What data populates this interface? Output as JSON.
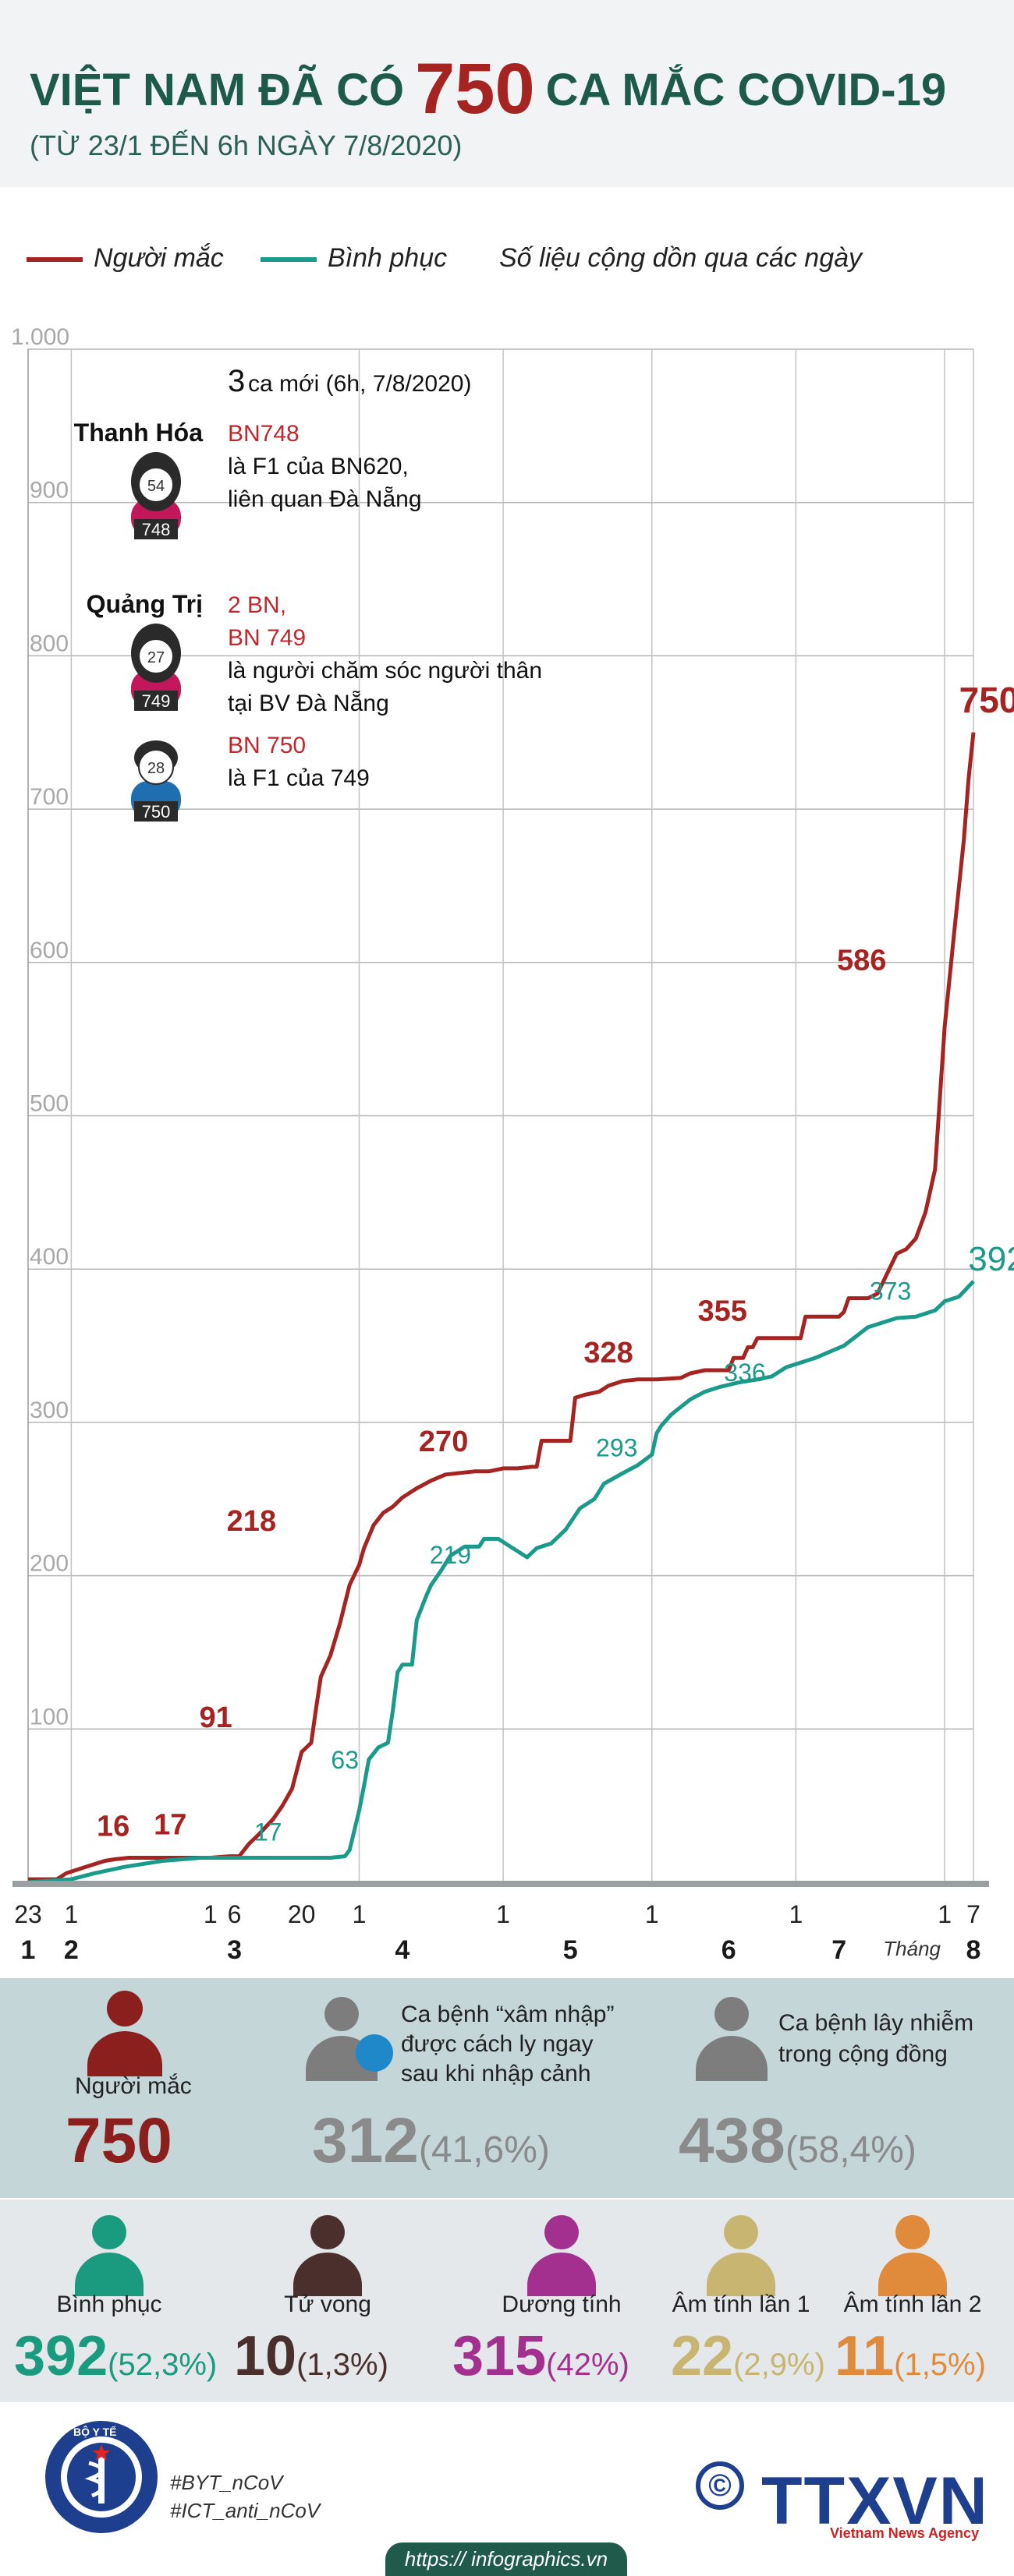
{
  "header": {
    "title_pre": "VIỆT NAM ĐÃ CÓ",
    "title_num": "750",
    "title_post": "CA MẮC COVID-19",
    "subtitle": "(TỪ 23/1 ĐẾN 6h NGÀY 7/8/2020)"
  },
  "legend": {
    "infected": "Người mắc",
    "recovered": "Bình phục",
    "note": "Số liệu cộng dồn qua các ngày"
  },
  "colors": {
    "infected": "#a52422",
    "recovered": "#1a9a8a",
    "title": "#1d5a4a"
  },
  "chart_data": {
    "type": "line",
    "title": "VIỆT NAM ĐÃ CÓ 750 CA MẮC COVID-19",
    "ylim": [
      0,
      1000
    ],
    "y_ticks": [
      "100",
      "200",
      "300",
      "400",
      "500",
      "600",
      "700",
      "800",
      "900",
      "1.000"
    ],
    "x_range_days": [
      0,
      197
    ],
    "x_day_labels": [
      {
        "day": 0,
        "label": "23"
      },
      {
        "day": 9,
        "label": "1"
      },
      {
        "day": 38,
        "label": "1"
      },
      {
        "day": 43,
        "label": "6"
      },
      {
        "day": 57,
        "label": "20"
      },
      {
        "day": 69,
        "label": "1"
      },
      {
        "day": 99,
        "label": "1"
      },
      {
        "day": 130,
        "label": "1"
      },
      {
        "day": 160,
        "label": "1"
      },
      {
        "day": 191,
        "label": "1"
      },
      {
        "day": 197,
        "label": "7"
      }
    ],
    "x_month_labels": [
      {
        "day": 0,
        "label": "1"
      },
      {
        "day": 9,
        "label": "2"
      },
      {
        "day": 43,
        "label": "3"
      },
      {
        "day": 78,
        "label": "4"
      },
      {
        "day": 113,
        "label": "5"
      },
      {
        "day": 146,
        "label": "6"
      },
      {
        "day": 169,
        "label": "7"
      },
      {
        "day": 197,
        "label": "8"
      }
    ],
    "month_word": "Tháng",
    "series": [
      {
        "name": "Người mắc",
        "points": [
          [
            0,
            2
          ],
          [
            6,
            2
          ],
          [
            8,
            6
          ],
          [
            10,
            8
          ],
          [
            12,
            10
          ],
          [
            14,
            12
          ],
          [
            16,
            14
          ],
          [
            18,
            15
          ],
          [
            21,
            16
          ],
          [
            38,
            16
          ],
          [
            42,
            17
          ],
          [
            44,
            17
          ],
          [
            46,
            25
          ],
          [
            48,
            31
          ],
          [
            51,
            41
          ],
          [
            53,
            50
          ],
          [
            55,
            61
          ],
          [
            57,
            85
          ],
          [
            59,
            91
          ],
          [
            60,
            113
          ],
          [
            61,
            134
          ],
          [
            63,
            148
          ],
          [
            65,
            169
          ],
          [
            67,
            194
          ],
          [
            69,
            207
          ],
          [
            70,
            218
          ],
          [
            72,
            233
          ],
          [
            74,
            241
          ],
          [
            76,
            245
          ],
          [
            78,
            251
          ],
          [
            81,
            257
          ],
          [
            84,
            262
          ],
          [
            87,
            266
          ],
          [
            90,
            267
          ],
          [
            93,
            268
          ],
          [
            96,
            268
          ],
          [
            99,
            270
          ],
          [
            102,
            270
          ],
          [
            105,
            271
          ],
          [
            106,
            271
          ],
          [
            107,
            288
          ],
          [
            113,
            288
          ],
          [
            114,
            316
          ],
          [
            116,
            318
          ],
          [
            119,
            320
          ],
          [
            121,
            324
          ],
          [
            124,
            327
          ],
          [
            127,
            328
          ],
          [
            131,
            328
          ],
          [
            136,
            329
          ],
          [
            138,
            332
          ],
          [
            141,
            334
          ],
          [
            146,
            334
          ],
          [
            147,
            342
          ],
          [
            149,
            342
          ],
          [
            150,
            349
          ],
          [
            151,
            349
          ],
          [
            152,
            355
          ],
          [
            161,
            355
          ],
          [
            162,
            369
          ],
          [
            169,
            369
          ],
          [
            170,
            372
          ],
          [
            171,
            381
          ],
          [
            175,
            381
          ],
          [
            177,
            384
          ],
          [
            181,
            410
          ],
          [
            183,
            413
          ],
          [
            185,
            420
          ],
          [
            187,
            437
          ],
          [
            189,
            465
          ],
          [
            191,
            558
          ],
          [
            193,
            620
          ],
          [
            195,
            680
          ],
          [
            196,
            720
          ],
          [
            197,
            750
          ]
        ]
      },
      {
        "name": "Bình phục",
        "points": [
          [
            0,
            0
          ],
          [
            9,
            2
          ],
          [
            14,
            6
          ],
          [
            20,
            10
          ],
          [
            28,
            14
          ],
          [
            36,
            16
          ],
          [
            46,
            16
          ],
          [
            55,
            16
          ],
          [
            63,
            16
          ],
          [
            66,
            17
          ],
          [
            67,
            21
          ],
          [
            69,
            47
          ],
          [
            70,
            63
          ],
          [
            71,
            80
          ],
          [
            73,
            88
          ],
          [
            75,
            91
          ],
          [
            76,
            112
          ],
          [
            77,
            137
          ],
          [
            78,
            142
          ],
          [
            80,
            142
          ],
          [
            81,
            171
          ],
          [
            83,
            187
          ],
          [
            84,
            194
          ],
          [
            86,
            203
          ],
          [
            88,
            213
          ],
          [
            91,
            219
          ],
          [
            94,
            219
          ],
          [
            95,
            224
          ],
          [
            98,
            224
          ],
          [
            100,
            220
          ],
          [
            102,
            216
          ],
          [
            104,
            212
          ],
          [
            106,
            218
          ],
          [
            109,
            221
          ],
          [
            112,
            230
          ],
          [
            115,
            244
          ],
          [
            118,
            250
          ],
          [
            120,
            260
          ],
          [
            124,
            267
          ],
          [
            127,
            272
          ],
          [
            130,
            279
          ],
          [
            131,
            293
          ],
          [
            132,
            298
          ],
          [
            134,
            305
          ],
          [
            136,
            310
          ],
          [
            138,
            315
          ],
          [
            141,
            320
          ],
          [
            144,
            323
          ],
          [
            148,
            326
          ],
          [
            152,
            328
          ],
          [
            155,
            330
          ],
          [
            158,
            336
          ],
          [
            164,
            342
          ],
          [
            170,
            350
          ],
          [
            175,
            362
          ],
          [
            181,
            368
          ],
          [
            185,
            369
          ],
          [
            189,
            373
          ],
          [
            191,
            379
          ],
          [
            194,
            382
          ],
          [
            197,
            392
          ]
        ]
      }
    ],
    "data_labels": {
      "infected": [
        {
          "day": 21,
          "value": 16,
          "text": "16"
        },
        {
          "day": 28,
          "value": 17,
          "text": "17"
        },
        {
          "day": 44,
          "value": 91,
          "text": "91"
        },
        {
          "day": 55,
          "value": 218,
          "text": "218"
        },
        {
          "day": 83,
          "value": 270,
          "text": "270"
        },
        {
          "day": 119,
          "value": 328,
          "text": "328"
        },
        {
          "day": 146,
          "value": 355,
          "text": "355"
        },
        {
          "day": 175,
          "value": 586,
          "text": "586"
        },
        {
          "day": 197,
          "value": 750,
          "text": "750"
        }
      ],
      "recovered": [
        {
          "day": 50,
          "value": 17,
          "text": "17"
        },
        {
          "day": 67,
          "value": 63,
          "text": "63"
        },
        {
          "day": 88,
          "value": 219,
          "text": "219"
        },
        {
          "day": 123,
          "value": 293,
          "text": "293"
        },
        {
          "day": 151,
          "value": 336,
          "text": "336"
        },
        {
          "day": 181,
          "value": 373,
          "text": "373"
        },
        {
          "day": 197,
          "value": 392,
          "text": "392"
        }
      ]
    },
    "annotation": {
      "new_cases_num": "3",
      "new_cases_text": "ca mới (6h, 7/8/2020)",
      "entries": [
        {
          "province": "Thanh Hóa",
          "age": "54",
          "case": "748",
          "red": [
            "BN748"
          ],
          "desc": [
            "là F1 của BN620,",
            "liên quan Đà Nẵng"
          ],
          "color": "#c2185b",
          "female": true
        },
        {
          "province": "Quảng Trị",
          "age": "27",
          "case": "749",
          "red": [
            "2 BN,",
            "BN 749"
          ],
          "desc": [
            "là người chăm sóc người thân",
            "tại BV Đà Nẵng"
          ],
          "color": "#c2185b",
          "female": true
        },
        {
          "province": "",
          "age": "28",
          "case": "750",
          "red": [
            "BN 750"
          ],
          "desc": [
            "là F1 của 749"
          ],
          "color": "#1f6fb0",
          "female": false
        }
      ]
    }
  },
  "summary": {
    "total_label": "Người mắc",
    "total_value": "750",
    "imported_label_1": "Ca bệnh “xâm nhập”",
    "imported_label_2": "được cách ly ngay",
    "imported_label_3": "sau khi nhập cảnh",
    "imported_value": "312",
    "imported_pct": "(41,6%)",
    "community_label_1": "Ca bệnh lây nhiễm",
    "community_label_2": "trong cộng đồng",
    "community_value": "438",
    "community_pct": "(58,4%)"
  },
  "status": [
    {
      "label": "Bình phục",
      "value": "392",
      "pct": "(52,3%)",
      "color": "#1a9a7e"
    },
    {
      "label": "Tử vong",
      "value": "10",
      "pct": "(1,3%)",
      "color": "#4a2f2c"
    },
    {
      "label": "Dương tính",
      "value": "315",
      "pct": "(42%)",
      "color": "#a3308f"
    },
    {
      "label": "Âm tính lần 1",
      "value": "22",
      "pct": "(2,9%)",
      "color": "#c7b571"
    },
    {
      "label": "Âm tính lần 2",
      "value": "11",
      "pct": "(1,5%)",
      "color": "#e08a3c"
    }
  ],
  "footer": {
    "hashtag1": "#BYT_nCoV",
    "hashtag2": "#ICT_anti_nCoV",
    "url": "https:// infographics.vn",
    "logo_text": "TTXVN",
    "logo_sub": "Vietnam News Agency",
    "copyright": "©",
    "ministry": "BỘ Y TẾ"
  }
}
